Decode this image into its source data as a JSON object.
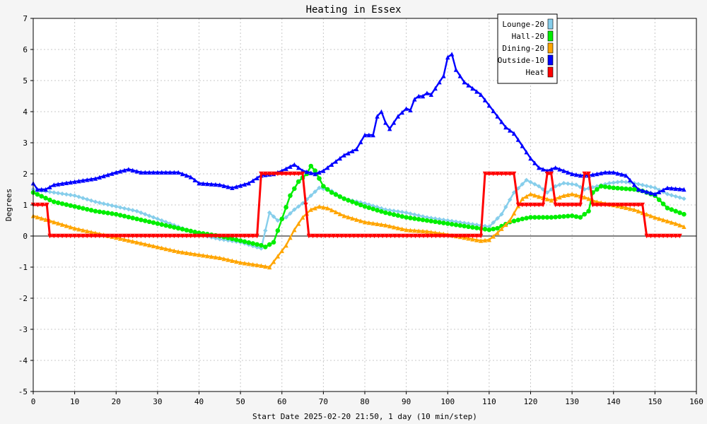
{
  "chart_data": {
    "type": "line",
    "title": "Heating in Essex",
    "xlabel": "Start Date 2025-02-20 21:50, 1 day (10 min/step)",
    "ylabel": "Degrees",
    "xlim": [
      0,
      160
    ],
    "ylim": [
      -5,
      7
    ],
    "x_ticks": [
      0,
      10,
      20,
      30,
      40,
      50,
      60,
      70,
      80,
      90,
      100,
      110,
      120,
      130,
      140,
      150,
      160
    ],
    "y_ticks": [
      -5,
      -4,
      -3,
      -2,
      -1,
      0,
      1,
      2,
      3,
      4,
      5,
      6,
      7
    ],
    "grid": true,
    "legend_position": "top-right",
    "series": [
      {
        "name": "Lounge-20",
        "color": "#87ceeb",
        "marker": "diamond",
        "points": [
          [
            0,
            1.5
          ],
          [
            5,
            1.4
          ],
          [
            10,
            1.3
          ],
          [
            15,
            1.1
          ],
          [
            20,
            0.95
          ],
          [
            25,
            0.8
          ],
          [
            30,
            0.55
          ],
          [
            35,
            0.3
          ],
          [
            40,
            0.05
          ],
          [
            45,
            -0.1
          ],
          [
            50,
            -0.2
          ],
          [
            55,
            -0.4
          ],
          [
            57,
            0.75
          ],
          [
            59,
            0.5
          ],
          [
            61,
            0.6
          ],
          [
            63,
            0.85
          ],
          [
            65,
            1.05
          ],
          [
            67,
            1.3
          ],
          [
            69,
            1.55
          ],
          [
            72,
            1.45
          ],
          [
            75,
            1.2
          ],
          [
            80,
            1.05
          ],
          [
            85,
            0.85
          ],
          [
            90,
            0.75
          ],
          [
            95,
            0.6
          ],
          [
            100,
            0.5
          ],
          [
            105,
            0.4
          ],
          [
            110,
            0.3
          ],
          [
            113,
            0.7
          ],
          [
            116,
            1.4
          ],
          [
            119,
            1.8
          ],
          [
            122,
            1.6
          ],
          [
            124,
            1.4
          ],
          [
            126,
            1.6
          ],
          [
            128,
            1.7
          ],
          [
            131,
            1.65
          ],
          [
            133,
            1.5
          ],
          [
            136,
            1.6
          ],
          [
            139,
            1.7
          ],
          [
            142,
            1.75
          ],
          [
            145,
            1.7
          ],
          [
            150,
            1.55
          ],
          [
            153,
            1.35
          ],
          [
            157,
            1.2
          ]
        ]
      },
      {
        "name": "Hall-20",
        "color": "#00ee00",
        "marker": "circle",
        "points": [
          [
            0,
            1.4
          ],
          [
            5,
            1.1
          ],
          [
            10,
            0.95
          ],
          [
            15,
            0.8
          ],
          [
            20,
            0.7
          ],
          [
            25,
            0.55
          ],
          [
            30,
            0.4
          ],
          [
            35,
            0.25
          ],
          [
            40,
            0.1
          ],
          [
            45,
            0.0
          ],
          [
            50,
            -0.15
          ],
          [
            55,
            -0.3
          ],
          [
            56,
            -0.35
          ],
          [
            58,
            -0.2
          ],
          [
            60,
            0.55
          ],
          [
            62,
            1.3
          ],
          [
            64,
            1.75
          ],
          [
            66,
            2.0
          ],
          [
            67,
            2.25
          ],
          [
            68,
            2.1
          ],
          [
            70,
            1.6
          ],
          [
            72,
            1.4
          ],
          [
            75,
            1.2
          ],
          [
            80,
            0.95
          ],
          [
            85,
            0.75
          ],
          [
            90,
            0.6
          ],
          [
            95,
            0.5
          ],
          [
            100,
            0.4
          ],
          [
            105,
            0.3
          ],
          [
            110,
            0.2
          ],
          [
            112,
            0.25
          ],
          [
            115,
            0.45
          ],
          [
            118,
            0.55
          ],
          [
            120,
            0.6
          ],
          [
            125,
            0.6
          ],
          [
            130,
            0.65
          ],
          [
            132,
            0.6
          ],
          [
            134,
            0.8
          ],
          [
            135,
            1.4
          ],
          [
            137,
            1.6
          ],
          [
            140,
            1.55
          ],
          [
            145,
            1.5
          ],
          [
            147,
            1.45
          ],
          [
            150,
            1.3
          ],
          [
            153,
            0.9
          ],
          [
            157,
            0.7
          ]
        ]
      },
      {
        "name": "Dining-20",
        "color": "#ffa500",
        "marker": "triangle",
        "points": [
          [
            0,
            0.65
          ],
          [
            5,
            0.45
          ],
          [
            10,
            0.25
          ],
          [
            15,
            0.1
          ],
          [
            20,
            -0.05
          ],
          [
            25,
            -0.2
          ],
          [
            30,
            -0.35
          ],
          [
            35,
            -0.5
          ],
          [
            40,
            -0.6
          ],
          [
            45,
            -0.7
          ],
          [
            50,
            -0.85
          ],
          [
            55,
            -0.95
          ],
          [
            57,
            -1.0
          ],
          [
            59,
            -0.65
          ],
          [
            61,
            -0.3
          ],
          [
            63,
            0.2
          ],
          [
            65,
            0.6
          ],
          [
            67,
            0.85
          ],
          [
            69,
            0.95
          ],
          [
            71,
            0.9
          ],
          [
            75,
            0.65
          ],
          [
            80,
            0.45
          ],
          [
            85,
            0.35
          ],
          [
            90,
            0.2
          ],
          [
            95,
            0.15
          ],
          [
            100,
            0.05
          ],
          [
            104,
            -0.05
          ],
          [
            108,
            -0.15
          ],
          [
            110,
            -0.12
          ],
          [
            112,
            0.1
          ],
          [
            115,
            0.5
          ],
          [
            118,
            1.2
          ],
          [
            120,
            1.35
          ],
          [
            125,
            1.15
          ],
          [
            128,
            1.3
          ],
          [
            130,
            1.35
          ],
          [
            133,
            1.25
          ],
          [
            136,
            1.1
          ],
          [
            140,
            1.0
          ],
          [
            145,
            0.85
          ],
          [
            150,
            0.6
          ],
          [
            155,
            0.4
          ],
          [
            157,
            0.3
          ]
        ]
      },
      {
        "name": "Outside-10",
        "color": "#0000ff",
        "marker": "triangle",
        "points": [
          [
            0,
            1.7
          ],
          [
            1,
            1.5
          ],
          [
            3,
            1.5
          ],
          [
            5,
            1.65
          ],
          [
            10,
            1.75
          ],
          [
            15,
            1.85
          ],
          [
            20,
            2.05
          ],
          [
            23,
            2.15
          ],
          [
            26,
            2.05
          ],
          [
            30,
            2.05
          ],
          [
            35,
            2.05
          ],
          [
            38,
            1.9
          ],
          [
            40,
            1.7
          ],
          [
            45,
            1.65
          ],
          [
            48,
            1.55
          ],
          [
            52,
            1.7
          ],
          [
            55,
            1.95
          ],
          [
            58,
            2.0
          ],
          [
            60,
            2.1
          ],
          [
            63,
            2.3
          ],
          [
            65,
            2.1
          ],
          [
            68,
            2.0
          ],
          [
            70,
            2.1
          ],
          [
            72,
            2.3
          ],
          [
            75,
            2.6
          ],
          [
            78,
            2.8
          ],
          [
            80,
            3.25
          ],
          [
            82,
            3.25
          ],
          [
            83,
            3.85
          ],
          [
            84,
            4.0
          ],
          [
            85,
            3.65
          ],
          [
            86,
            3.45
          ],
          [
            88,
            3.85
          ],
          [
            90,
            4.1
          ],
          [
            91,
            4.05
          ],
          [
            92,
            4.4
          ],
          [
            93,
            4.5
          ],
          [
            94,
            4.5
          ],
          [
            95,
            4.6
          ],
          [
            96,
            4.55
          ],
          [
            97,
            4.75
          ],
          [
            98,
            4.95
          ],
          [
            99,
            5.15
          ],
          [
            100,
            5.75
          ],
          [
            101,
            5.85
          ],
          [
            102,
            5.35
          ],
          [
            104,
            4.95
          ],
          [
            106,
            4.75
          ],
          [
            108,
            4.55
          ],
          [
            110,
            4.2
          ],
          [
            112,
            3.85
          ],
          [
            114,
            3.5
          ],
          [
            116,
            3.3
          ],
          [
            118,
            2.9
          ],
          [
            120,
            2.5
          ],
          [
            122,
            2.2
          ],
          [
            124,
            2.1
          ],
          [
            126,
            2.2
          ],
          [
            128,
            2.1
          ],
          [
            130,
            2.0
          ],
          [
            132,
            1.95
          ],
          [
            134,
            1.95
          ],
          [
            136,
            2.0
          ],
          [
            138,
            2.05
          ],
          [
            140,
            2.05
          ],
          [
            143,
            1.95
          ],
          [
            146,
            1.5
          ],
          [
            150,
            1.35
          ],
          [
            153,
            1.55
          ],
          [
            157,
            1.5
          ]
        ]
      },
      {
        "name": "Heat",
        "color": "#ff0000",
        "marker": "triangle-down",
        "points": [
          [
            0,
            1
          ],
          [
            3.3,
            1
          ],
          [
            4,
            0
          ],
          [
            54,
            0
          ],
          [
            55,
            2
          ],
          [
            65,
            2
          ],
          [
            66.5,
            0
          ],
          [
            108,
            0
          ],
          [
            109,
            2
          ],
          [
            116,
            2
          ],
          [
            117,
            1
          ],
          [
            123,
            1
          ],
          [
            124,
            2
          ],
          [
            125,
            2
          ],
          [
            126,
            1
          ],
          [
            132,
            1
          ],
          [
            133,
            2
          ],
          [
            134,
            2
          ],
          [
            135,
            1
          ],
          [
            147,
            1
          ],
          [
            148,
            0
          ],
          [
            156,
            0
          ]
        ]
      }
    ]
  }
}
